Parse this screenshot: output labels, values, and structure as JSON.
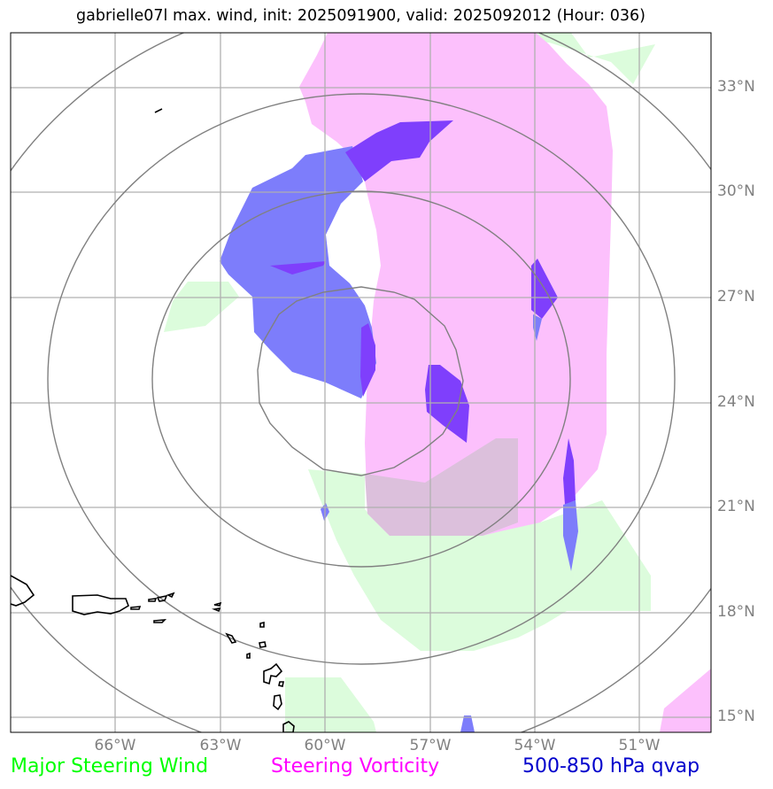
{
  "title": "gabrielle07l max. wind, init: 2025091900, valid: 2025092012 (Hour: 036)",
  "lat_labels": [
    "33°N",
    "30°N",
    "27°N",
    "24°N",
    "21°N",
    "18°N",
    "15°N"
  ],
  "lon_labels": [
    "66°W",
    "63°W",
    "60°W",
    "57°W",
    "54°W",
    "51°W"
  ],
  "legend": [
    {
      "label": "Major Steering Wind",
      "color": "#00ff00"
    },
    {
      "label": "Steering Vorticity",
      "color": "#ff00ff"
    },
    {
      "label": "500-850 hPa qvap",
      "color": "#0000cc"
    }
  ],
  "colors": {
    "wind_fill": "#dcfcdc",
    "vorticity_fill": "#fcc0fc",
    "qvap_fill": "#7d7dfb",
    "qvap_dark": "#7f3ffc",
    "overlap_fill": "#dcc0dc",
    "grid": "#b0b0b0",
    "range_rings": "#808080",
    "coastline": "#000000"
  }
}
